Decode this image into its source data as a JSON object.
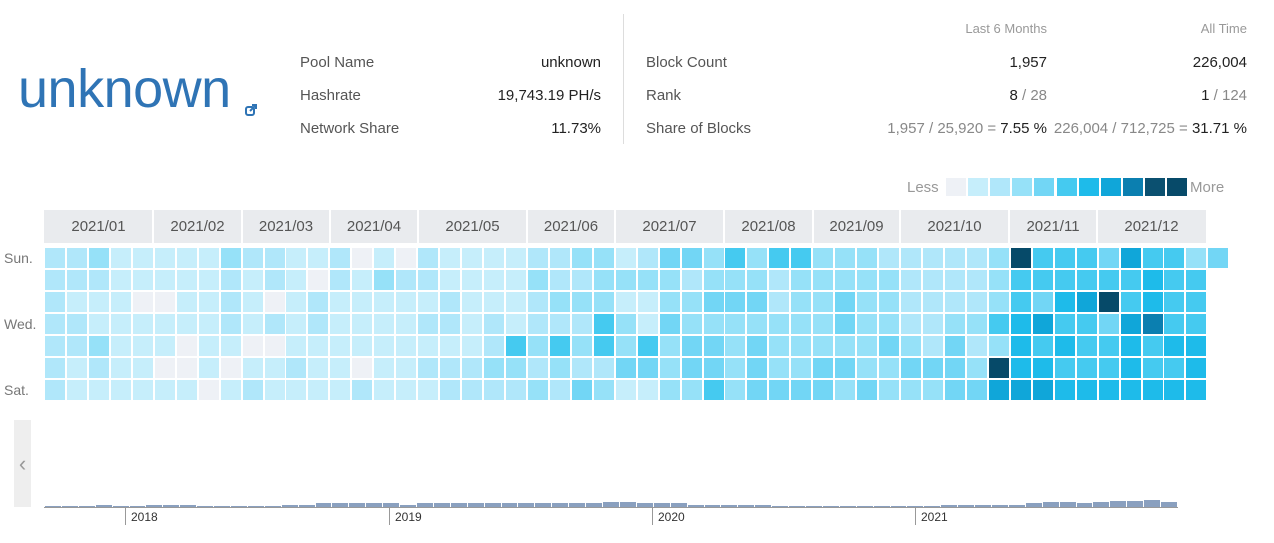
{
  "pool": {
    "name": "unknown",
    "link_icon": "external-link-icon"
  },
  "info": {
    "rows": [
      {
        "label": "Pool Name",
        "value": "unknown"
      },
      {
        "label": "Hashrate",
        "value": "19,743.19 PH/s"
      },
      {
        "label": "Network Share",
        "value": "11.73%"
      }
    ]
  },
  "stats": {
    "headers": {
      "recent": "Last 6 Months",
      "all": "All Time"
    },
    "rows": [
      {
        "label": "Block Count",
        "recent": "1,957",
        "all": "226,004"
      },
      {
        "label": "Rank",
        "recent_main": "8",
        "recent_rest": " / 28",
        "all_main": "1",
        "all_rest": " / 124"
      },
      {
        "label": "Share of Blocks",
        "recent_rest": "1,957 / 25,920 = ",
        "recent_main": "7.55 %",
        "all_rest": "226,004 / 712,725 = ",
        "all_main": "31.71 %"
      }
    ]
  },
  "legend": {
    "less": "Less",
    "more": "More",
    "colors": [
      "#eef1f6",
      "#c6eefb",
      "#b0e7fa",
      "#96e1f8",
      "#72d6f5",
      "#45caf0",
      "#1ebbea",
      "#10a6d9",
      "#0b7fb0",
      "#0b5070",
      "#074a69"
    ]
  },
  "calendar": {
    "months": [
      "2021/01",
      "2021/02",
      "2021/03",
      "2021/04",
      "2021/05",
      "2021/06",
      "2021/07",
      "2021/08",
      "2021/09",
      "2021/10",
      "2021/11",
      "2021/12"
    ],
    "day_labels": [
      "Sun.",
      "Wed.",
      "Sat."
    ],
    "palette": [
      "#eef1f6",
      "#c6eefb",
      "#b0e7fa",
      "#96e1f8",
      "#72d6f5",
      "#45caf0",
      "#1ebbea",
      "#10a6d9",
      "#0b7fb0",
      "#064a69"
    ],
    "weeks": [
      [
        2,
        2,
        2,
        2,
        2,
        2,
        2
      ],
      [
        2,
        2,
        1,
        2,
        2,
        1,
        1
      ],
      [
        3,
        2,
        1,
        1,
        3,
        2,
        1
      ],
      [
        1,
        1,
        1,
        1,
        1,
        1,
        1
      ],
      [
        1,
        1,
        0,
        1,
        1,
        1,
        1
      ],
      [
        1,
        1,
        0,
        1,
        1,
        0,
        1
      ],
      [
        1,
        1,
        1,
        1,
        0,
        0,
        1
      ],
      [
        1,
        1,
        1,
        1,
        1,
        1,
        0
      ],
      [
        3,
        2,
        2,
        2,
        1,
        0,
        1
      ],
      [
        2,
        1,
        1,
        1,
        0,
        1,
        2
      ],
      [
        2,
        2,
        0,
        2,
        0,
        1,
        1
      ],
      [
        1,
        1,
        1,
        1,
        1,
        2,
        1
      ],
      [
        1,
        0,
        2,
        2,
        1,
        1,
        1
      ],
      [
        2,
        2,
        1,
        1,
        1,
        1,
        1
      ],
      [
        0,
        1,
        1,
        1,
        1,
        0,
        2
      ],
      [
        1,
        3,
        1,
        1,
        1,
        1,
        1
      ],
      [
        0,
        2,
        1,
        1,
        1,
        1,
        1
      ],
      [
        2,
        2,
        1,
        2,
        1,
        2,
        1
      ],
      [
        1,
        1,
        2,
        2,
        1,
        2,
        2
      ],
      [
        1,
        1,
        1,
        1,
        1,
        2,
        2
      ],
      [
        1,
        1,
        1,
        2,
        2,
        3,
        2
      ],
      [
        1,
        1,
        1,
        1,
        5,
        3,
        2
      ],
      [
        2,
        3,
        2,
        2,
        3,
        2,
        3
      ],
      [
        2,
        2,
        3,
        2,
        5,
        3,
        2
      ],
      [
        3,
        2,
        3,
        2,
        3,
        2,
        4
      ],
      [
        3,
        3,
        3,
        5,
        5,
        2,
        3
      ],
      [
        1,
        3,
        1,
        3,
        3,
        4,
        1
      ],
      [
        2,
        3,
        1,
        1,
        5,
        4,
        1
      ],
      [
        4,
        3,
        3,
        4,
        3,
        3,
        3
      ],
      [
        4,
        2,
        3,
        3,
        4,
        4,
        3
      ],
      [
        3,
        3,
        4,
        3,
        4,
        4,
        5
      ],
      [
        5,
        3,
        4,
        3,
        3,
        3,
        3
      ],
      [
        3,
        3,
        4,
        3,
        4,
        4,
        4
      ],
      [
        5,
        2,
        2,
        3,
        3,
        3,
        4
      ],
      [
        5,
        3,
        3,
        3,
        3,
        3,
        4
      ],
      [
        3,
        3,
        3,
        3,
        3,
        4,
        4
      ],
      [
        3,
        3,
        4,
        4,
        3,
        4,
        3
      ],
      [
        3,
        3,
        3,
        3,
        3,
        3,
        4
      ],
      [
        2,
        3,
        3,
        3,
        4,
        3,
        3
      ],
      [
        2,
        2,
        2,
        2,
        3,
        4,
        3
      ],
      [
        2,
        2,
        2,
        2,
        2,
        4,
        3
      ],
      [
        2,
        2,
        2,
        3,
        4,
        4,
        4
      ],
      [
        2,
        2,
        2,
        3,
        2,
        3,
        4
      ],
      [
        3,
        3,
        3,
        5,
        3,
        9,
        7
      ],
      [
        9,
        5,
        5,
        6,
        6,
        6,
        7
      ],
      [
        5,
        5,
        4,
        7,
        5,
        6,
        7
      ],
      [
        5,
        5,
        6,
        5,
        6,
        5,
        6
      ],
      [
        5,
        5,
        7,
        5,
        5,
        5,
        6
      ],
      [
        4,
        5,
        9,
        4,
        5,
        5,
        6
      ],
      [
        7,
        5,
        5,
        7,
        6,
        6,
        6
      ],
      [
        5,
        6,
        6,
        8,
        5,
        5,
        6
      ],
      [
        5,
        5,
        5,
        5,
        6,
        5,
        6
      ],
      [
        3,
        5,
        5,
        5,
        6,
        6,
        6
      ],
      [
        4
      ]
    ]
  },
  "timeline": {
    "years": [
      "2018",
      "2019",
      "2020",
      "2021"
    ],
    "bars": [
      1,
      1,
      1,
      2,
      1,
      1,
      2,
      2,
      2,
      1,
      1,
      1,
      1,
      1,
      2,
      2,
      3,
      3,
      3,
      3,
      3,
      2,
      3,
      3,
      3,
      3,
      3,
      3,
      3,
      3,
      3,
      3,
      3,
      4,
      4,
      3,
      3,
      3,
      2,
      2,
      2,
      2,
      2,
      1,
      1,
      1,
      1,
      1,
      1,
      1,
      1,
      1,
      1,
      2,
      2,
      2,
      2,
      2,
      3,
      4,
      4,
      3,
      4,
      5,
      5,
      6,
      4
    ]
  }
}
